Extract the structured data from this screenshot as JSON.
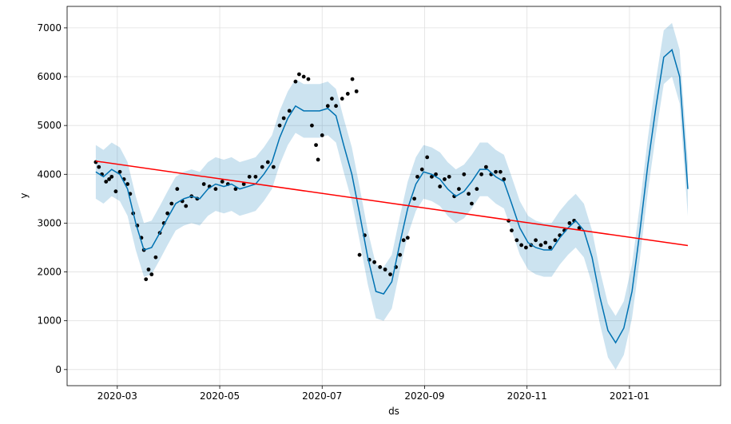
{
  "chart_data": {
    "type": "line",
    "xlabel": "ds",
    "ylabel": "y",
    "xlim": [
      2.02,
      14.78
    ],
    "ylim": [
      -330,
      7440
    ],
    "xticks": [
      {
        "value": 3,
        "label": "2020-03"
      },
      {
        "value": 5,
        "label": "2020-05"
      },
      {
        "value": 7,
        "label": "2020-07"
      },
      {
        "value": 9,
        "label": "2020-09"
      },
      {
        "value": 11,
        "label": "2020-11"
      },
      {
        "value": 13,
        "label": "2021-01"
      }
    ],
    "yticks": [
      0,
      1000,
      2000,
      3000,
      4000,
      5000,
      6000,
      7000
    ],
    "grid": true,
    "forecast": {
      "color": "#0072b2",
      "band_color": "#0072b2",
      "x": [
        2.58,
        2.73,
        2.89,
        3.05,
        3.2,
        3.36,
        3.52,
        3.67,
        3.83,
        3.98,
        4.14,
        4.3,
        4.45,
        4.61,
        4.77,
        4.92,
        5.08,
        5.23,
        5.39,
        5.55,
        5.7,
        5.86,
        6.02,
        6.17,
        6.33,
        6.48,
        6.64,
        6.8,
        6.95,
        7.11,
        7.27,
        7.42,
        7.58,
        7.73,
        7.89,
        8.05,
        8.2,
        8.36,
        8.52,
        8.67,
        8.83,
        8.98,
        9.14,
        9.3,
        9.45,
        9.61,
        9.77,
        9.92,
        10.08,
        10.23,
        10.39,
        10.55,
        10.7,
        10.86,
        11.02,
        11.17,
        11.33,
        11.48,
        11.64,
        11.8,
        11.95,
        12.11,
        12.27,
        12.42,
        12.58,
        12.73,
        12.89,
        13.05,
        13.2,
        13.36,
        13.52,
        13.67,
        13.83,
        13.98,
        14.14
      ],
      "values": [
        4050,
        3950,
        4100,
        4000,
        3700,
        3000,
        2450,
        2500,
        2800,
        3100,
        3400,
        3500,
        3550,
        3500,
        3700,
        3800,
        3750,
        3800,
        3700,
        3750,
        3800,
        4000,
        4250,
        4750,
        5150,
        5400,
        5300,
        5300,
        5300,
        5350,
        5200,
        4600,
        4000,
        3200,
        2300,
        1600,
        1550,
        1800,
        2600,
        3300,
        3800,
        4050,
        4000,
        3900,
        3700,
        3550,
        3650,
        3850,
        4100,
        4100,
        3950,
        3850,
        3400,
        2900,
        2600,
        2500,
        2450,
        2450,
        2700,
        2900,
        3050,
        2850,
        2300,
        1500,
        800,
        550,
        850,
        1600,
        2800,
        4200,
        5400,
        6400,
        6550,
        6000,
        3700
      ],
      "lower": [
        3500,
        3400,
        3550,
        3450,
        3150,
        2450,
        1900,
        1950,
        2250,
        2550,
        2850,
        2950,
        3000,
        2950,
        3150,
        3250,
        3200,
        3250,
        3150,
        3200,
        3250,
        3450,
        3700,
        4200,
        4600,
        4850,
        4750,
        4750,
        4750,
        4800,
        4650,
        4050,
        3450,
        2650,
        1750,
        1050,
        1000,
        1250,
        2050,
        2750,
        3250,
        3500,
        3450,
        3350,
        3150,
        3000,
        3100,
        3300,
        3550,
        3550,
        3400,
        3300,
        2850,
        2350,
        2050,
        1950,
        1900,
        1900,
        2150,
        2350,
        2500,
        2300,
        1750,
        950,
        250,
        0,
        300,
        1050,
        2250,
        3650,
        4850,
        5850,
        6000,
        5450,
        3150
      ],
      "upper": [
        4600,
        4500,
        4650,
        4550,
        4250,
        3550,
        3000,
        3050,
        3350,
        3650,
        3950,
        4050,
        4100,
        4050,
        4250,
        4350,
        4300,
        4350,
        4250,
        4300,
        4350,
        4550,
        4800,
        5300,
        5700,
        5950,
        5850,
        5850,
        5850,
        5900,
        5750,
        5150,
        4550,
        3750,
        2850,
        2150,
        2100,
        2350,
        3150,
        3850,
        4350,
        4600,
        4550,
        4450,
        4250,
        4100,
        4200,
        4400,
        4650,
        4650,
        4500,
        4400,
        3950,
        3450,
        3150,
        3050,
        3000,
        3000,
        3250,
        3450,
        3600,
        3400,
        2850,
        2050,
        1350,
        1100,
        1400,
        2150,
        3350,
        4750,
        5950,
        6950,
        7100,
        6550,
        4250
      ]
    },
    "observed": {
      "color": "#000000",
      "x": [
        2.58,
        2.64,
        2.7,
        2.78,
        2.84,
        2.89,
        2.97,
        3.05,
        3.13,
        3.2,
        3.25,
        3.31,
        3.39,
        3.47,
        3.52,
        3.56,
        3.61,
        3.67,
        3.75,
        3.83,
        3.91,
        3.98,
        4.06,
        4.17,
        4.27,
        4.34,
        4.45,
        4.56,
        4.69,
        4.8,
        4.92,
        5.05,
        5.16,
        5.31,
        5.47,
        5.58,
        5.7,
        5.83,
        5.94,
        6.05,
        6.17,
        6.25,
        6.36,
        6.48,
        6.55,
        6.64,
        6.73,
        6.8,
        6.88,
        6.92,
        7.0,
        7.11,
        7.19,
        7.27,
        7.39,
        7.5,
        7.59,
        7.67,
        7.73,
        7.83,
        7.92,
        8.02,
        8.13,
        8.23,
        8.33,
        8.44,
        8.52,
        8.59,
        8.67,
        8.8,
        8.86,
        8.95,
        9.05,
        9.14,
        9.22,
        9.3,
        9.39,
        9.48,
        9.58,
        9.67,
        9.77,
        9.86,
        9.92,
        10.02,
        10.11,
        10.2,
        10.3,
        10.39,
        10.48,
        10.55,
        10.64,
        10.7,
        10.8,
        10.89,
        10.98,
        11.08,
        11.17,
        11.27,
        11.36,
        11.45,
        11.55,
        11.64,
        11.73,
        11.83,
        11.92,
        12.02
      ],
      "values": [
        4250,
        4150,
        4000,
        3850,
        3900,
        3950,
        3650,
        4050,
        3900,
        3800,
        3600,
        3200,
        2950,
        2700,
        2450,
        1850,
        2050,
        1950,
        2300,
        2800,
        3000,
        3200,
        3400,
        3700,
        3450,
        3350,
        3550,
        3500,
        3800,
        3750,
        3700,
        3850,
        3800,
        3700,
        3800,
        3950,
        3950,
        4150,
        4250,
        4150,
        5000,
        5150,
        5300,
        5900,
        6050,
        6000,
        5950,
        5000,
        4600,
        4300,
        4800,
        5400,
        5550,
        5400,
        5550,
        5650,
        5950,
        5700,
        2350,
        2750,
        2250,
        2200,
        2100,
        2050,
        1950,
        2100,
        2350,
        2650,
        2700,
        3500,
        3950,
        4100,
        4350,
        3950,
        4000,
        3750,
        3900,
        3950,
        3550,
        3700,
        4000,
        3600,
        3400,
        3700,
        4000,
        4150,
        4000,
        4050,
        4050,
        3900,
        3050,
        2850,
        2650,
        2550,
        2500,
        2550,
        2650,
        2550,
        2600,
        2500,
        2650,
        2750,
        2850,
        3000,
        3050,
        2900
      ]
    },
    "trend": {
      "color": "#ff0000",
      "x": [
        2.58,
        14.14
      ],
      "values": [
        4270,
        2540
      ]
    }
  }
}
